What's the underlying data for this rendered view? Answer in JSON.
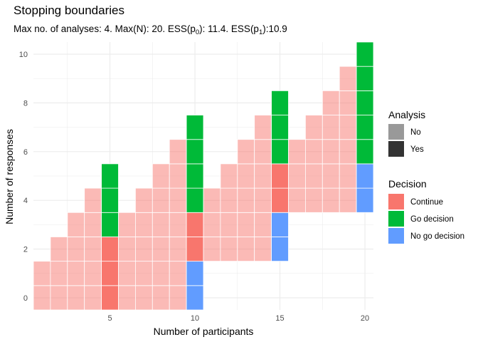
{
  "chart_data": {
    "type": "heatmap",
    "title": "Stopping boundaries",
    "subtitle_prefix": "Max no. of analyses: 4. Max(N): 20. ESS(p",
    "subtitle_mid": "): 11.4. ESS(p",
    "subtitle_end": "):10.9",
    "subtitle_sub0": "0",
    "subtitle_sub1": "1",
    "xlabel": "Number of participants",
    "ylabel": "Number of responses",
    "xlim": [
      0.5,
      20.5
    ],
    "ylim": [
      -0.5,
      10.5
    ],
    "x_ticks": [
      5,
      10,
      15,
      20
    ],
    "y_ticks": [
      0,
      2,
      4,
      6,
      8,
      10
    ],
    "grid": true,
    "colors": {
      "Continue": "#F8766D",
      "Go decision": "#00BA38",
      "No go decision": "#619CFF",
      "No": "#999999",
      "Yes": "#333333"
    },
    "cells": [
      {
        "n": 1,
        "decisions": [
          "C",
          "C"
        ],
        "analysis": "No"
      },
      {
        "n": 2,
        "decisions": [
          "C",
          "C",
          "C"
        ],
        "analysis": "No"
      },
      {
        "n": 3,
        "decisions": [
          "C",
          "C",
          "C",
          "C"
        ],
        "analysis": "No"
      },
      {
        "n": 4,
        "decisions": [
          "C",
          "C",
          "C",
          "C",
          "C"
        ],
        "analysis": "No"
      },
      {
        "n": 5,
        "decisions": [
          "C",
          "C",
          "C",
          "G",
          "G",
          "G"
        ],
        "analysis": "Yes"
      },
      {
        "n": 6,
        "decisions": [
          "C",
          "C",
          "C",
          "C"
        ],
        "analysis": "No"
      },
      {
        "n": 7,
        "decisions": [
          "C",
          "C",
          "C",
          "C",
          "C"
        ],
        "analysis": "No"
      },
      {
        "n": 8,
        "decisions": [
          "C",
          "C",
          "C",
          "C",
          "C",
          "C"
        ],
        "analysis": "No"
      },
      {
        "n": 9,
        "decisions": [
          "C",
          "C",
          "C",
          "C",
          "C",
          "C",
          "C"
        ],
        "analysis": "No"
      },
      {
        "n": 10,
        "decisions": [
          "N",
          "N",
          "C",
          "C",
          "G",
          "G",
          "G",
          "G"
        ],
        "analysis": "Yes"
      },
      {
        "n": 11,
        "decisions": [
          "-",
          "-",
          "C",
          "C",
          "C"
        ],
        "analysis": "No"
      },
      {
        "n": 12,
        "decisions": [
          "-",
          "-",
          "C",
          "C",
          "C",
          "C"
        ],
        "analysis": "No"
      },
      {
        "n": 13,
        "decisions": [
          "-",
          "-",
          "C",
          "C",
          "C",
          "C",
          "C"
        ],
        "analysis": "No"
      },
      {
        "n": 14,
        "decisions": [
          "-",
          "-",
          "C",
          "C",
          "C",
          "C",
          "C",
          "C"
        ],
        "analysis": "No"
      },
      {
        "n": 15,
        "decisions": [
          "-",
          "-",
          "N",
          "N",
          "C",
          "C",
          "G",
          "G",
          "G"
        ],
        "analysis": "Yes"
      },
      {
        "n": 16,
        "decisions": [
          "-",
          "-",
          "-",
          "-",
          "C",
          "C",
          "C"
        ],
        "analysis": "No"
      },
      {
        "n": 17,
        "decisions": [
          "-",
          "-",
          "-",
          "-",
          "C",
          "C",
          "C",
          "C"
        ],
        "analysis": "No"
      },
      {
        "n": 18,
        "decisions": [
          "-",
          "-",
          "-",
          "-",
          "C",
          "C",
          "C",
          "C",
          "C"
        ],
        "analysis": "No"
      },
      {
        "n": 19,
        "decisions": [
          "-",
          "-",
          "-",
          "-",
          "C",
          "C",
          "C",
          "C",
          "C",
          "C"
        ],
        "analysis": "No"
      },
      {
        "n": 20,
        "decisions": [
          "-",
          "-",
          "-",
          "-",
          "N",
          "N",
          "G",
          "G",
          "G",
          "G",
          "G"
        ],
        "analysis": "Yes"
      }
    ],
    "decision_key": {
      "C": "Continue",
      "G": "Go decision",
      "N": "No go decision"
    },
    "legend": {
      "analysis_title": "Analysis",
      "analysis_items": [
        "No",
        "Yes"
      ],
      "decision_title": "Decision",
      "decision_items": [
        "Continue",
        "Go decision",
        "No go decision"
      ]
    }
  }
}
